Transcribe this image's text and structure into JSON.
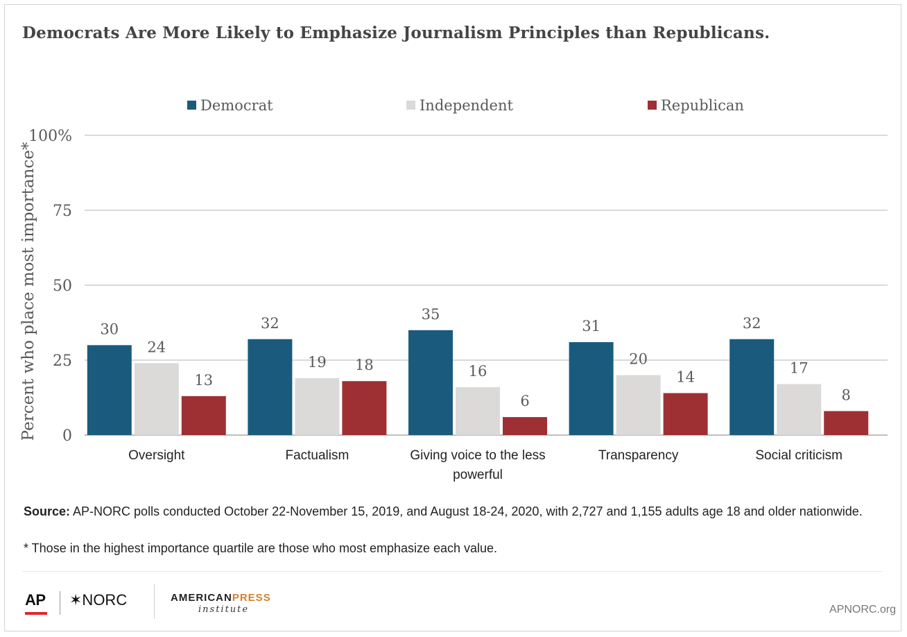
{
  "title": "Democrats Are More Likely to Emphasize Journalism Principles than Republicans.",
  "colors": {
    "democrat": "#1a5b7d",
    "independent": "#dcdad9",
    "republican": "#9e3034",
    "grid": "#d9d9d9",
    "axis": "#bfbfbf"
  },
  "chart_data": {
    "type": "bar",
    "categories": [
      [
        "Oversight"
      ],
      [
        "Factualism"
      ],
      [
        "Giving voice to the less",
        "powerful"
      ],
      [
        "Transparency"
      ],
      [
        "Social criticism"
      ]
    ],
    "series": [
      {
        "name": "Democrat",
        "values": [
          30,
          32,
          35,
          31,
          32
        ]
      },
      {
        "name": "Independent",
        "values": [
          24,
          19,
          16,
          20,
          17
        ]
      },
      {
        "name": "Republican",
        "values": [
          13,
          18,
          6,
          14,
          8
        ]
      }
    ],
    "ylabel": "Percent who place most importance*",
    "ylim": [
      0,
      100
    ],
    "yticks": [
      {
        "value": 0,
        "label": "0"
      },
      {
        "value": 25,
        "label": "25"
      },
      {
        "value": 50,
        "label": "50"
      },
      {
        "value": 75,
        "label": "75"
      },
      {
        "value": 100,
        "label": "100%"
      }
    ],
    "grid": true,
    "legend": "top"
  },
  "source_label": "Source:",
  "source_text": " AP-NORC polls conducted October 22-November 15, 2019, and August 18-24, 2020, with 2,727 and 1,155 adults age 18 and older nationwide.",
  "footnote": "* Those in the highest importance quartile are those who most emphasize each value.",
  "footer": {
    "ap": "AP",
    "norc": "✶NORC",
    "api_american": "AMERICAN",
    "api_press": "PRESS",
    "api_institute": "institute",
    "site": "APNORC.org"
  }
}
